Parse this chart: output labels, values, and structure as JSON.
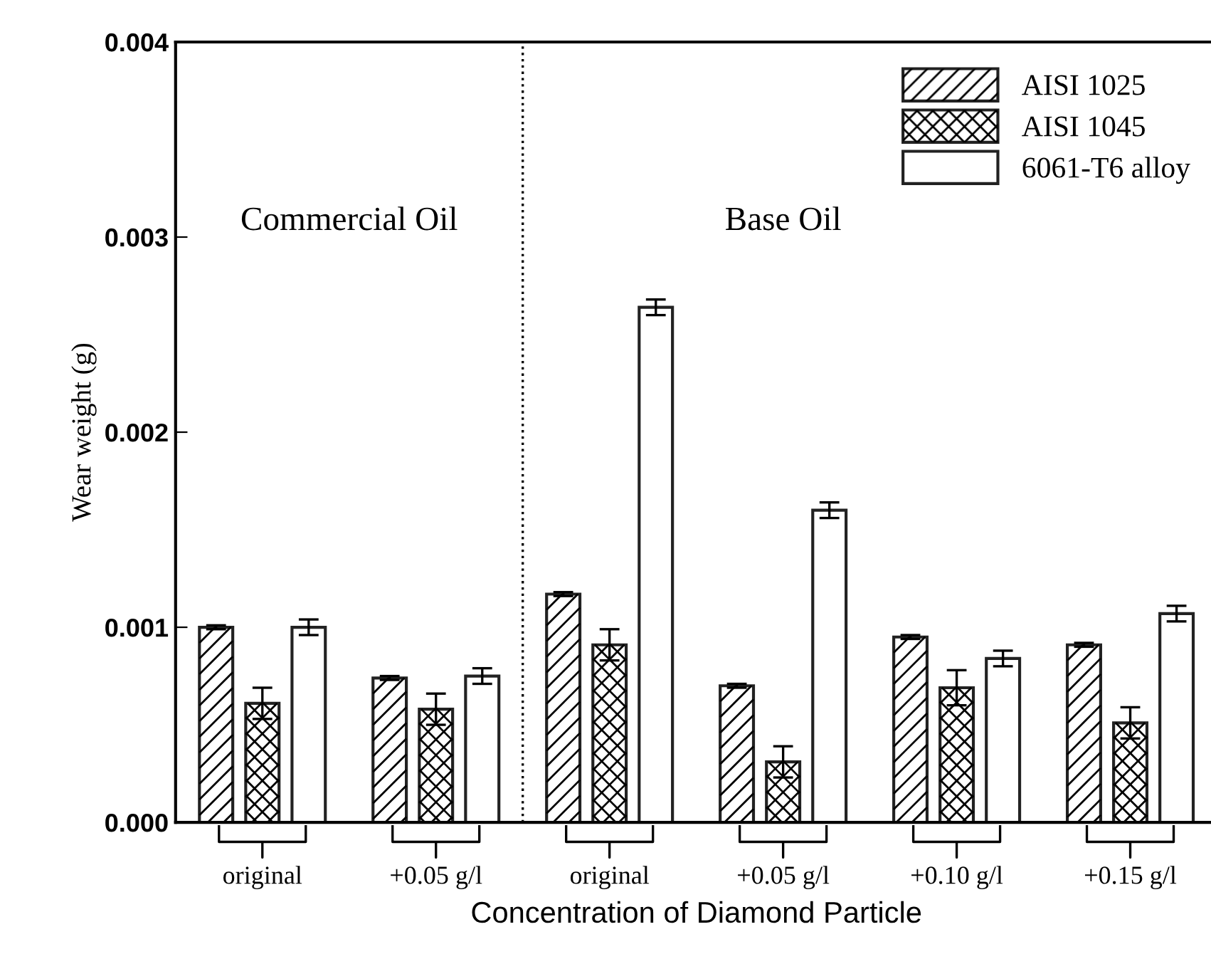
{
  "chart_data": {
    "type": "bar",
    "xlabel": "Concentration of Diamond Particle",
    "ylabel": "Wear weight (g)",
    "categories": [
      "original",
      "+0.05 g/l",
      "original",
      "+0.05 g/l",
      "+0.10 g/l",
      "+0.15 g/l"
    ],
    "series": [
      {
        "name": "AISI 1025",
        "color": "#ffffff",
        "values": [
          0.001,
          0.00074,
          0.00117,
          0.0007,
          0.00095,
          0.00091
        ],
        "errors": [
          1e-05,
          1e-05,
          1e-05,
          1e-05,
          1e-05,
          1e-05
        ]
      },
      {
        "name": "AISI 1045",
        "color": "#ffffff",
        "values": [
          0.00061,
          0.00058,
          0.00091,
          0.00031,
          0.00069,
          0.00051
        ],
        "errors": [
          8e-05,
          8e-05,
          8e-05,
          8e-05,
          9e-05,
          8e-05
        ]
      },
      {
        "name": "6061-T6 alloy",
        "color": "#ffffff",
        "values": [
          0.001,
          0.00075,
          0.00264,
          0.0016,
          0.00084,
          0.00107
        ],
        "errors": [
          4e-05,
          4e-05,
          4e-05,
          4e-05,
          4e-05,
          4e-05
        ]
      }
    ],
    "ylim": [
      0,
      0.004
    ],
    "yticks": [
      {
        "value": 0,
        "label": "0.000"
      },
      {
        "value": 0.001,
        "label": "0.001"
      },
      {
        "value": 0.002,
        "label": "0.002"
      },
      {
        "value": 0.003,
        "label": "0.003"
      },
      {
        "value": 0.004,
        "label": "0.004"
      }
    ],
    "annotations": [
      "Commercial Oil",
      "Base Oil"
    ],
    "legend": "top right",
    "grid": false
  }
}
